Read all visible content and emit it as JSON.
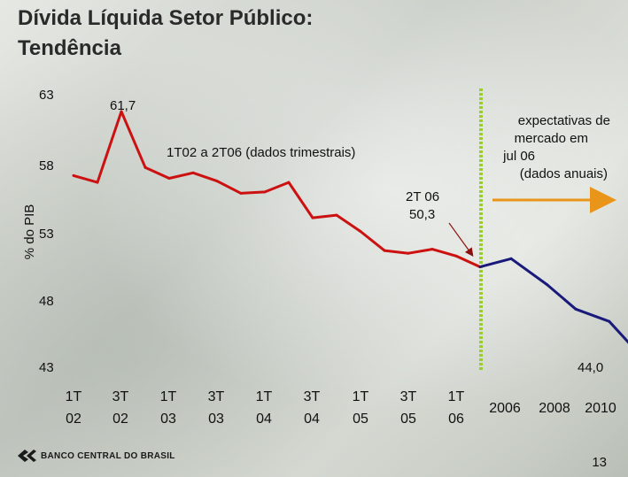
{
  "slide": {
    "title_line1": "Dívida Líquida Setor Público:",
    "title_line2": "Tendência",
    "bank_name": "BANCO CENTRAL DO BRASIL",
    "page_number": "13"
  },
  "chart_data": {
    "type": "line",
    "ylabel": "% do PIB",
    "yticks": [
      "63",
      "58",
      "53",
      "48",
      "43"
    ],
    "ylim": [
      43,
      63
    ],
    "categories": [
      "1T 02",
      "3T 02",
      "1T 03",
      "3T 03",
      "1T 04",
      "3T 04",
      "1T 05",
      "3T 05",
      "1T 06",
      "2006",
      "2008",
      "2010"
    ],
    "x_tick_lines": [
      [
        "1T",
        "02"
      ],
      [
        "3T",
        "02"
      ],
      [
        "1T",
        "03"
      ],
      [
        "3T",
        "03"
      ],
      [
        "1T",
        "04"
      ],
      [
        "3T",
        "04"
      ],
      [
        "1T",
        "05"
      ],
      [
        "3T",
        "05"
      ],
      [
        "1T",
        "06"
      ]
    ],
    "x_annual_ticks": [
      "2006",
      "2008",
      "2010"
    ],
    "series": [
      {
        "name": "1T02 a 2T06 (dados trimestrais)",
        "color": "#cc1111",
        "x": [
          0,
          0.5,
          1,
          1.5,
          2,
          2.5,
          3,
          3.5,
          4,
          4.5,
          5,
          5.5,
          6,
          6.5,
          7,
          7.5,
          8,
          8.5
        ],
        "values": [
          57.0,
          56.5,
          61.7,
          57.6,
          56.8,
          57.2,
          56.6,
          55.7,
          55.8,
          56.5,
          53.9,
          54.1,
          52.9,
          51.5,
          51.3,
          51.6,
          51.1,
          50.3
        ]
      },
      {
        "name": "expectativas de mercado em jul 06 (dados anuais)",
        "color": "#1a1a7a",
        "x": [
          8.5,
          9.15,
          9.9,
          10.5,
          11.2,
          11.8
        ],
        "values": [
          50.3,
          50.9,
          49.0,
          47.2,
          46.3,
          44.0
        ]
      }
    ],
    "annotations": {
      "peak_label": "61,7",
      "quarterly_label": "1T02 a 2T06 (dados trimestrais)",
      "last_quarter_label_line1": "2T 06",
      "last_quarter_label_line2": "50,3",
      "end_label": "44,0",
      "expectations_line1": "expectativas de",
      "expectations_line2": "mercado em",
      "expectations_line3": "jul 06",
      "expectations_line4": "(dados anuais)",
      "divider_color": "#9acd32",
      "arrow_color": "#e8951a"
    }
  }
}
